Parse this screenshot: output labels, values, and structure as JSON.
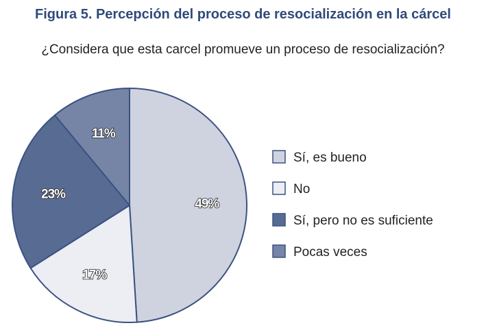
{
  "chart_data": {
    "type": "pie",
    "title": "Figura 5. Percepción del proceso de resocialización en la cárcel",
    "subtitle": "¿Considera que esta carcel promueve un proceso de resocialización?",
    "legend_position": "right",
    "start": "top",
    "direction": "clockwise",
    "slices": [
      {
        "name": "Sí, es bueno",
        "value": 49,
        "label": "49%",
        "color": "#cfd3e0"
      },
      {
        "name": "No",
        "value": 17,
        "label": "17%",
        "color": "#eceef4"
      },
      {
        "name": "Sí, pero no es suficiente",
        "value": 23,
        "label": "23%",
        "color": "#586b93"
      },
      {
        "name": "Pocas veces",
        "value": 11,
        "label": "11%",
        "color": "#7685a6"
      }
    ],
    "edge_color": "#3b5280"
  }
}
